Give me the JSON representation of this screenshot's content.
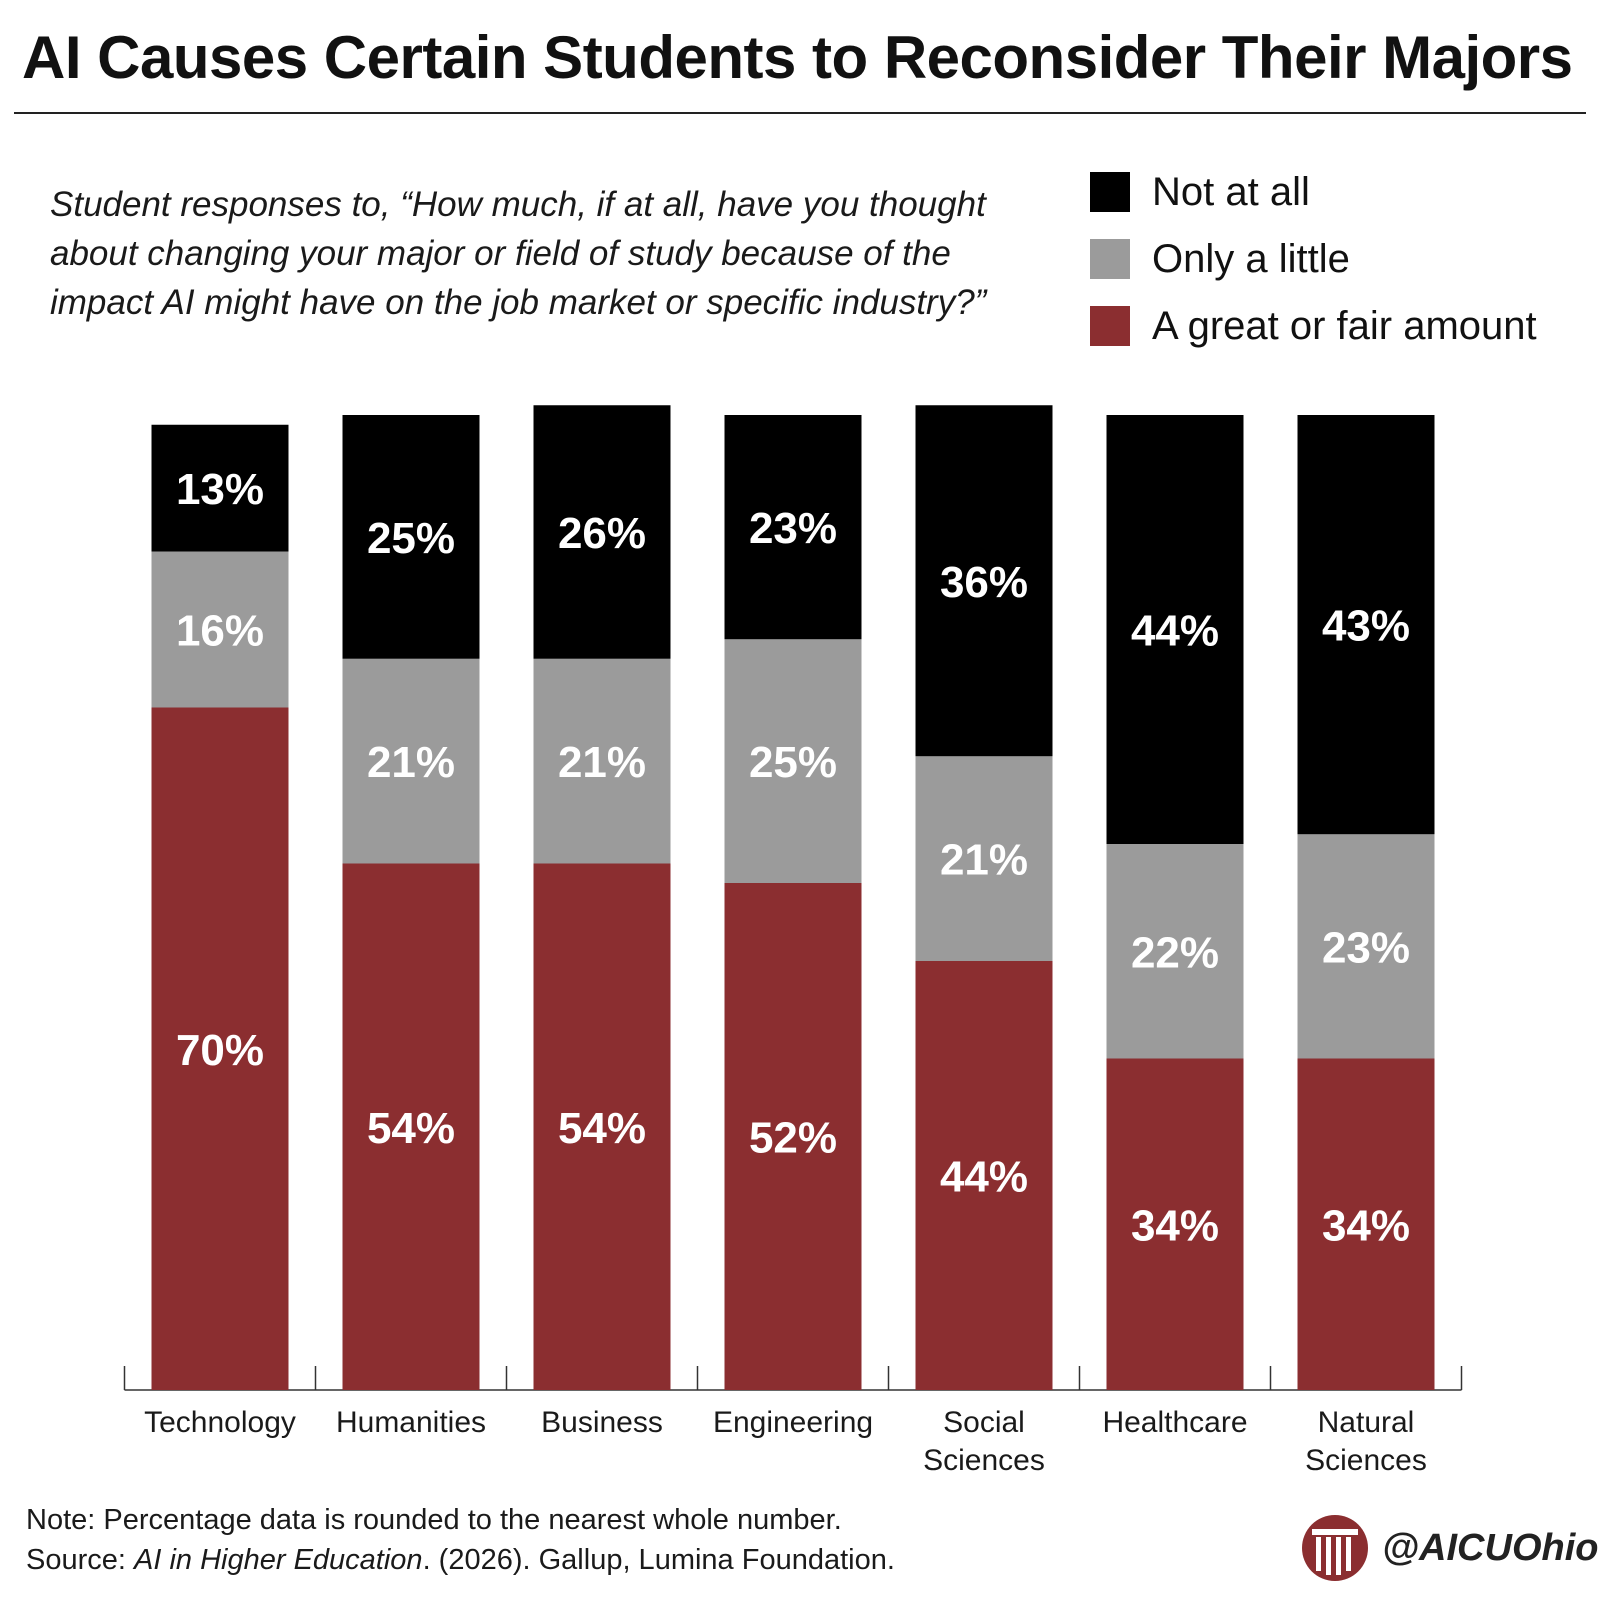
{
  "title": "AI Causes Certain Students to Reconsider Their Majors",
  "subtitle": "Student responses to, “How much, if at all, have you thought about changing your major or field of study because of the impact AI might have on the job market or specific industry?”",
  "colors": {
    "not_at_all": "#000000",
    "only_a_little": "#9b9b9b",
    "great_or_fair": "#8b2e30",
    "label_text": "#ffffff"
  },
  "legend": [
    {
      "label": "Not at all",
      "color": "#000000"
    },
    {
      "label": "Only a little",
      "color": "#9b9b9b"
    },
    {
      "label": "A great or fair amount",
      "color": "#8b2e30"
    }
  ],
  "chart_data": {
    "type": "bar",
    "stacked": true,
    "title": "AI Causes Certain Students to Reconsider Their Majors",
    "xlabel": "",
    "ylabel": "",
    "ylim": [
      0,
      100
    ],
    "grid": false,
    "legend_position": "top-right",
    "categories": [
      "Technology",
      "Humanities",
      "Business",
      "Engineering",
      "Social Sciences",
      "Healthcare",
      "Natural Sciences"
    ],
    "category_lines": [
      [
        "Technology"
      ],
      [
        "Humanities"
      ],
      [
        "Business"
      ],
      [
        "Engineering"
      ],
      [
        "Social",
        "Sciences"
      ],
      [
        "Healthcare"
      ],
      [
        "Natural",
        "Sciences"
      ]
    ],
    "series": [
      {
        "name": "A great or fair amount",
        "color": "#8b2e30",
        "values": [
          70,
          54,
          54,
          52,
          44,
          34,
          34
        ]
      },
      {
        "name": "Only a little",
        "color": "#9b9b9b",
        "values": [
          16,
          21,
          21,
          25,
          21,
          22,
          23
        ]
      },
      {
        "name": "Not at all",
        "color": "#000000",
        "values": [
          13,
          25,
          26,
          23,
          36,
          44,
          43
        ]
      }
    ],
    "value_suffix": "%"
  },
  "footer": {
    "note": "Note: Percentage data is rounded to the nearest whole number.",
    "source_prefix": "Source: ",
    "source_title": "AI in Higher Education",
    "source_rest": ". (2026). Gallup, Lumina Foundation."
  },
  "brand": {
    "logo_icon": "aicu-pillar-logo-icon",
    "handle": "@AICUOhio"
  }
}
